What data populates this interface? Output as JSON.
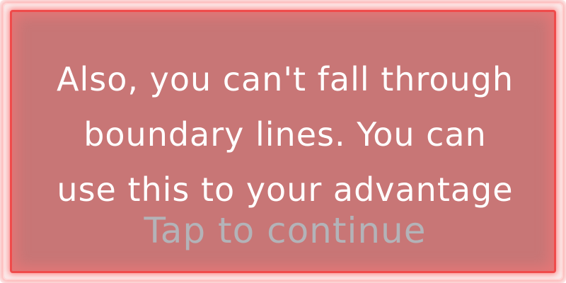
{
  "dialog": {
    "message": "Also, you can't fall through\nboundary lines. You can\nuse this to your advantage",
    "continue_label": "Tap to continue"
  },
  "colors": {
    "panel": "#c87676",
    "border": "#ef4b4b",
    "message_text": "#ffffff",
    "continue_text": "#b3b3b8"
  }
}
